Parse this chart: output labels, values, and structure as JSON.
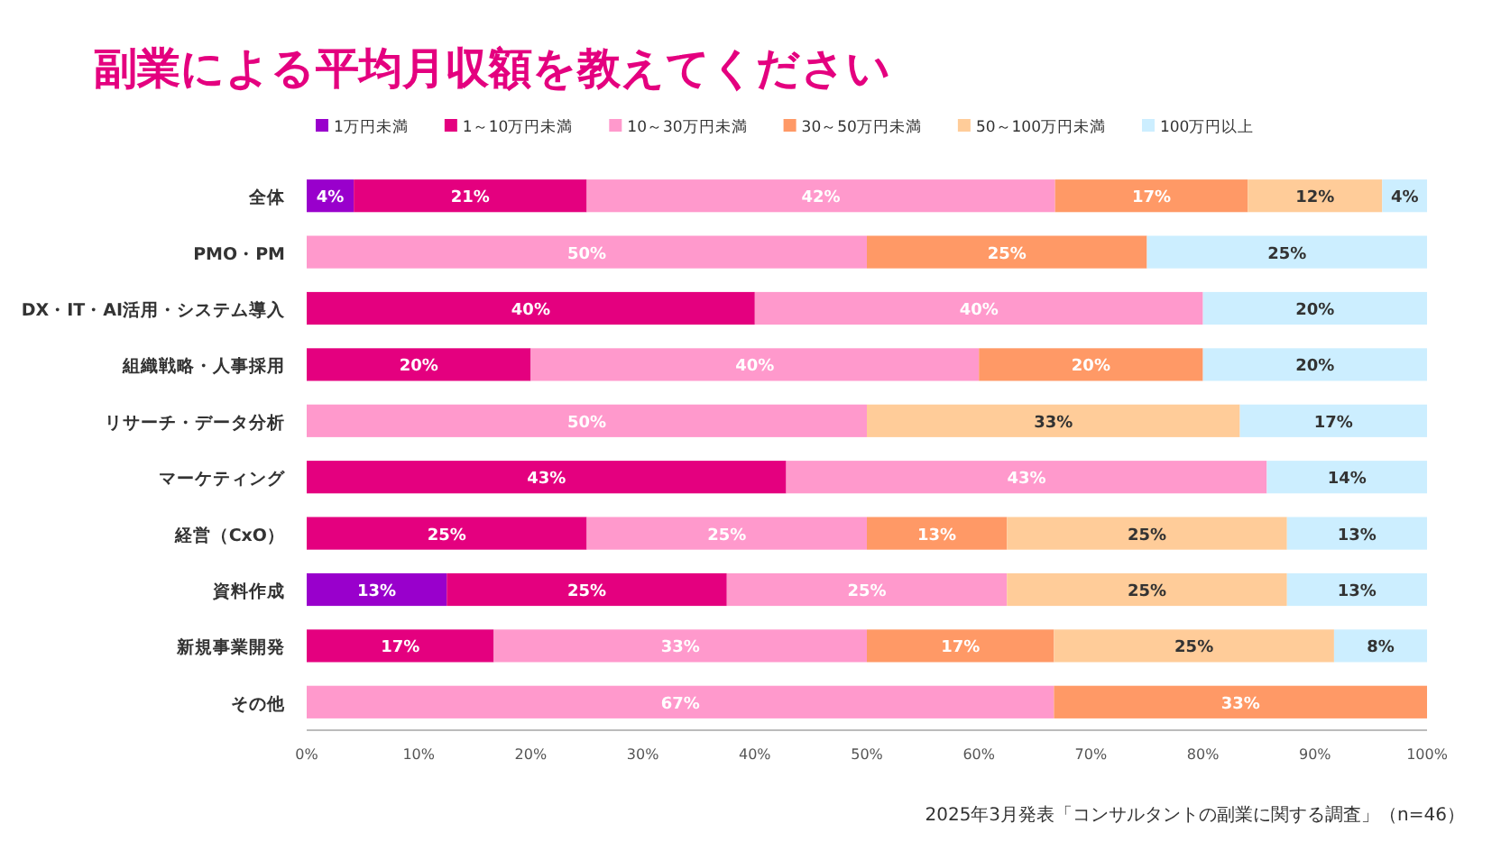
{
  "chart_data": {
    "type": "bar",
    "orientation": "horizontal",
    "stacked": true,
    "title": "副業による平均月収額を教えてください",
    "categories": [
      "全体",
      "PMO・PM",
      "DX・IT・AI活用・システム導入",
      "組織戦略・人事採用",
      "リサーチ・データ分析",
      "マーケティング",
      "経営（CxO）",
      "資料作成",
      "新規事業開発",
      "その他"
    ],
    "series": [
      {
        "name": "1万円未満",
        "color": "#9900cc",
        "values": [
          4.2,
          null,
          null,
          null,
          null,
          null,
          null,
          12.5,
          null,
          null
        ],
        "value_labels": [
          "4%",
          null,
          null,
          null,
          null,
          null,
          null,
          "13%",
          null,
          null
        ]
      },
      {
        "name": "1～10万円未満",
        "color": "#e4007f",
        "values": [
          20.8,
          null,
          40,
          20,
          null,
          42.8,
          25,
          25,
          16.7,
          null
        ],
        "value_labels": [
          "21%",
          null,
          "40%",
          "20%",
          null,
          "43%",
          "25%",
          "25%",
          "17%",
          null
        ]
      },
      {
        "name": "10～30万円未満",
        "color": "#ff99cc",
        "values": [
          41.8,
          50,
          40,
          40,
          50,
          42.9,
          25,
          25,
          33.3,
          66.7
        ],
        "value_labels": [
          "42%",
          "50%",
          "40%",
          "40%",
          "50%",
          "43%",
          "25%",
          "25%",
          "33%",
          "67%"
        ]
      },
      {
        "name": "30～50万円未満",
        "color": "#ff9966",
        "values": [
          17.2,
          25,
          null,
          20,
          null,
          null,
          12.5,
          null,
          16.7,
          33.3
        ],
        "value_labels": [
          "17%",
          "25%",
          null,
          "20%",
          null,
          null,
          "13%",
          null,
          "17%",
          "33%"
        ]
      },
      {
        "name": "50～100万円未満",
        "color": "#ffcc99",
        "values": [
          12,
          null,
          null,
          null,
          33.3,
          null,
          25,
          25,
          25,
          null
        ],
        "value_labels": [
          "12%",
          null,
          null,
          null,
          "33%",
          null,
          "25%",
          "25%",
          "25%",
          null
        ]
      },
      {
        "name": "100万円以上",
        "color": "#cceeff",
        "values": [
          4,
          25,
          20,
          20,
          16.7,
          14.3,
          12.5,
          12.5,
          8.3,
          null
        ],
        "value_labels": [
          "4%",
          "25%",
          "20%",
          "20%",
          "17%",
          "14%",
          "13%",
          "13%",
          "8%",
          null
        ]
      }
    ],
    "xlim": [
      0,
      100
    ],
    "xticks": [
      {
        "value": 0,
        "label": "0%"
      },
      {
        "value": 10,
        "label": "10%"
      },
      {
        "value": 20,
        "label": "20%"
      },
      {
        "value": 30,
        "label": "30%"
      },
      {
        "value": 40,
        "label": "40%"
      },
      {
        "value": 50,
        "label": "50%"
      },
      {
        "value": 60,
        "label": "60%"
      },
      {
        "value": 70,
        "label": "70%"
      },
      {
        "value": 80,
        "label": "80%"
      },
      {
        "value": 90,
        "label": "90%"
      },
      {
        "value": 100,
        "label": "100%"
      }
    ],
    "legend": "top",
    "annotations": [
      "2025年3月発表「コンサルタントの副業に関する調査」（n=46）"
    ]
  }
}
